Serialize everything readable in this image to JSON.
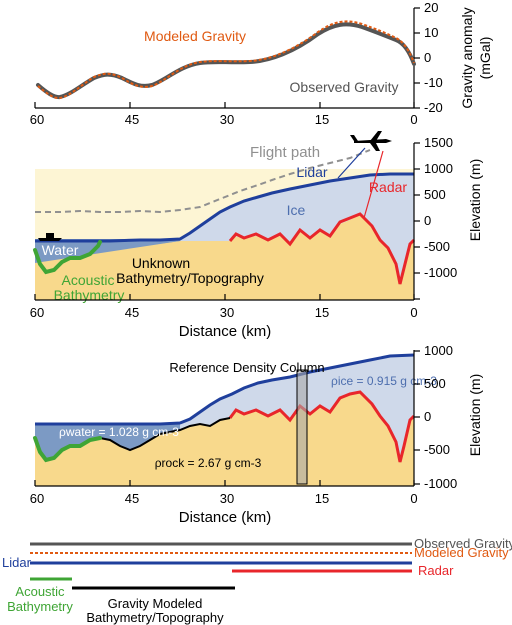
{
  "colors": {
    "observed": "#555555",
    "modeled": "#e05a12",
    "lidar": "#1f3f9c",
    "radar": "#e8262b",
    "acoustic": "#3fa535",
    "bedrock_line": "#000000",
    "rock_fill": "#f8d98c",
    "ice_fill": "#cfd9ea",
    "water_fill": "#7c9ac4",
    "sky_fill": "#fdf5d4",
    "flight_path": "#909090",
    "annotation_blue": "#4d6eae"
  },
  "panel_a": {
    "x_ticks": [
      "60",
      "45",
      "30",
      "15",
      "0"
    ],
    "y_ticks": [
      "20",
      "10",
      "0",
      "-10",
      "-20"
    ],
    "y_axis_label": "Gravity anomaly",
    "y_axis_unit": "(mGal)",
    "modeled_label": "Modeled Gravity",
    "observed_label": "Observed Gravity"
  },
  "panel_b": {
    "flight_path_label": "Flight path",
    "lidar_label": "Lidar",
    "radar_label": "Radar",
    "ice_label": "Ice",
    "water_label": "Water",
    "acoustic_label_1": "Acoustic",
    "acoustic_label_2": "Bathymetry",
    "unknown_label_1": "Unknown",
    "unknown_label_2": "Bathymetry/Topography",
    "x_ticks": [
      "60",
      "45",
      "30",
      "15",
      "0"
    ],
    "x_axis_label": "Distance (km)",
    "y_ticks": [
      "1500",
      "1000",
      "500",
      "0",
      "-500",
      "-1000"
    ],
    "y_axis_label": "Elevation (m)",
    "icon_names": [
      "airplane-icon",
      "boat-icon"
    ]
  },
  "panel_c": {
    "reference_label": "Reference Density Column",
    "rho_ice_label": "ρice = 0.915 g cm-3",
    "rho_water_label": "ρwater = 1.028 g cm-3",
    "rho_rock_label": "ρrock = 2.67 g cm-3",
    "x_ticks": [
      "60",
      "45",
      "30",
      "15",
      "0"
    ],
    "x_axis_label": "Distance (km)",
    "y_ticks": [
      "1000",
      "500",
      "0",
      "-500",
      "-1000"
    ],
    "y_axis_label": "Elevation (m)"
  },
  "legend": {
    "observed": "Observed Gravity",
    "modeled": "Modeled Gravity",
    "lidar": "Lidar",
    "radar": "Radar",
    "acoustic_1": "Acoustic",
    "acoustic_2": "Bathymetry",
    "gravity_model_1": "Gravity Modeled",
    "gravity_model_2": "Bathymetry/Topography"
  }
}
